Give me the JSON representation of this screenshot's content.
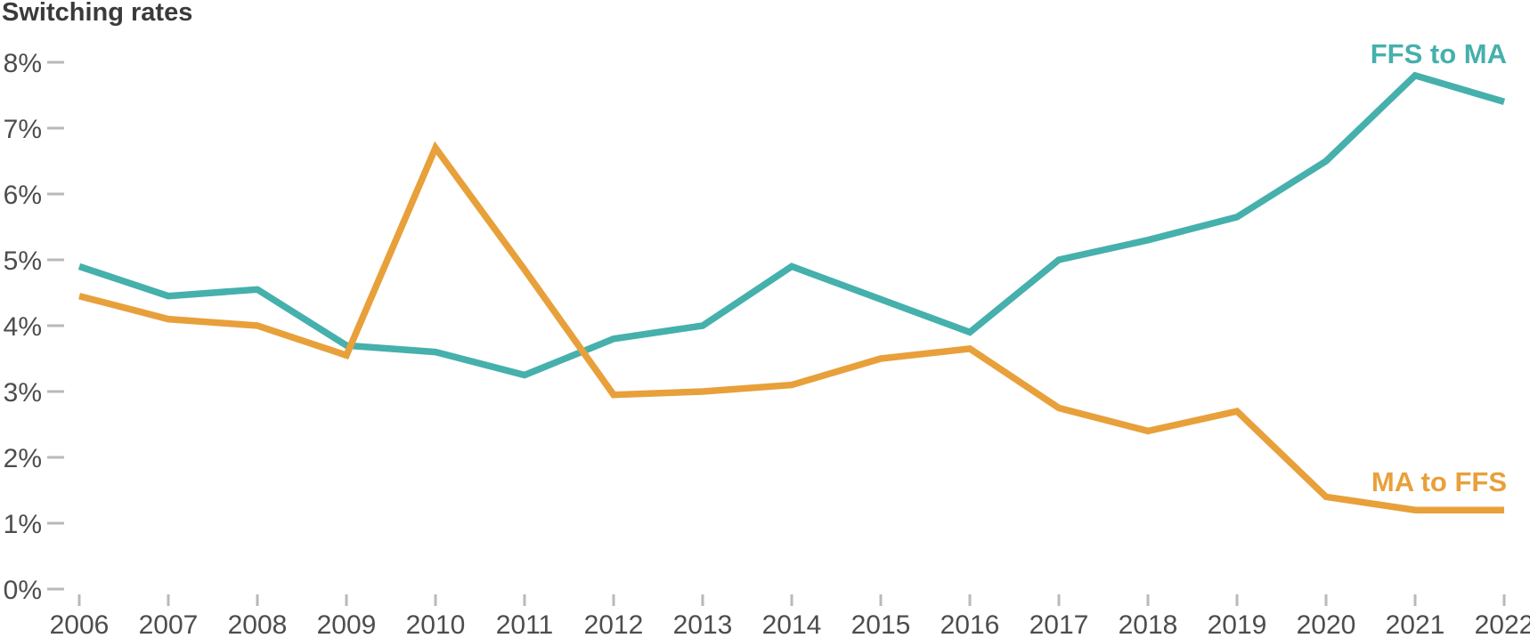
{
  "title": "Switching rates",
  "colors": {
    "teal": "#45B0AC",
    "orange": "#E8A03A",
    "title_text": "#3A3A3A",
    "axis_text": "#4D4D4D",
    "tick": "#B9B9B9",
    "background": "#FFFFFF"
  },
  "axes": {
    "y_tick_labels": [
      "8%",
      "7%",
      "6%",
      "5%",
      "4%",
      "3%",
      "2%",
      "1%",
      "0%"
    ],
    "x_tick_labels": [
      "2006",
      "2007",
      "2008",
      "2009",
      "2010",
      "2011",
      "2012",
      "2013",
      "2014",
      "2015",
      "2016",
      "2017",
      "2018",
      "2019",
      "2020",
      "2021",
      "2022"
    ]
  },
  "chart_data": {
    "type": "line",
    "title": "Switching rates",
    "x": [
      2006,
      2007,
      2008,
      2009,
      2010,
      2011,
      2012,
      2013,
      2014,
      2015,
      2016,
      2017,
      2018,
      2019,
      2020,
      2021,
      2022
    ],
    "ylim": [
      0,
      8
    ],
    "ytick_step": 1,
    "ytick_suffix": "%",
    "grid": false,
    "legend_position": "inline-end-labels",
    "series": [
      {
        "name": "FFS to MA",
        "color_key": "teal",
        "values": [
          4.9,
          4.45,
          4.55,
          3.7,
          3.6,
          3.25,
          3.8,
          4.0,
          4.9,
          4.4,
          3.9,
          5.0,
          5.3,
          5.65,
          6.5,
          7.8,
          7.4
        ]
      },
      {
        "name": "MA to FFS",
        "color_key": "orange",
        "values": [
          4.45,
          4.1,
          4.0,
          3.55,
          6.7,
          4.85,
          2.95,
          3.0,
          3.1,
          3.5,
          3.65,
          2.75,
          2.4,
          2.7,
          1.4,
          1.2,
          1.2
        ]
      }
    ]
  }
}
